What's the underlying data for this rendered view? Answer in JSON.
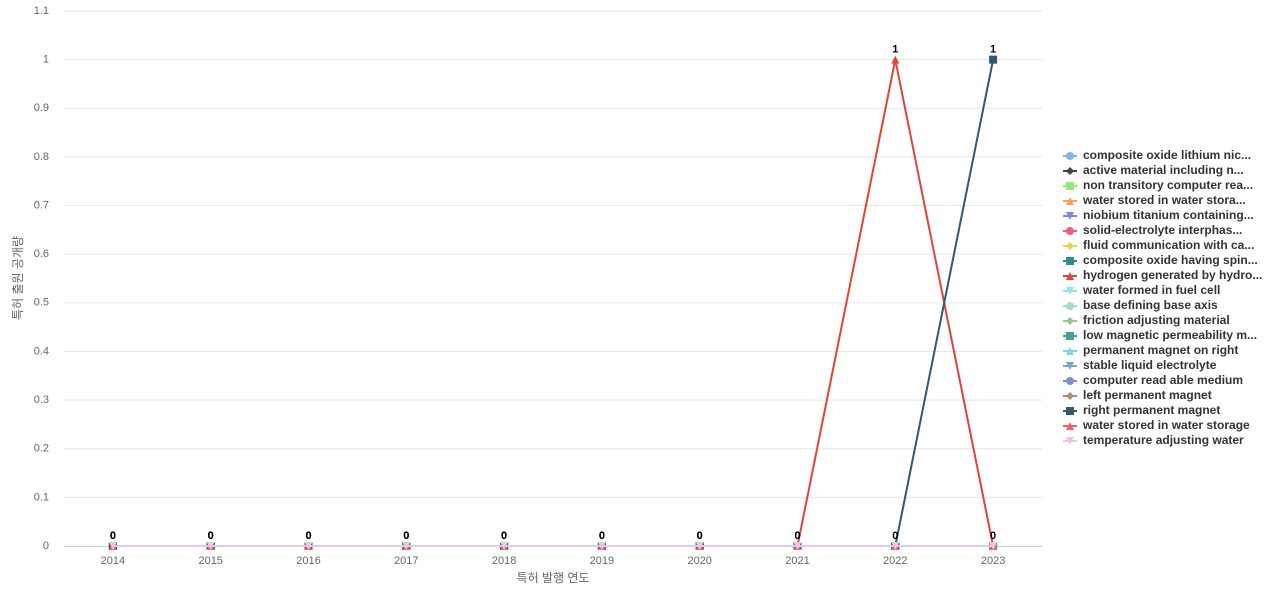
{
  "chart_data": {
    "type": "line",
    "x_label": "특허 발행 연도",
    "y_label": "특허 출원 공개량",
    "categories": [
      "2014",
      "2015",
      "2016",
      "2017",
      "2018",
      "2019",
      "2020",
      "2021",
      "2022",
      "2023"
    ],
    "ylim": [
      0,
      1.1
    ],
    "yticks": [
      0,
      0.1,
      0.2,
      0.3,
      0.4,
      0.5,
      0.6,
      0.7,
      0.8,
      0.9,
      1,
      1.1
    ],
    "grid": true,
    "legend": "right",
    "series": [
      {
        "name": "composite oxide lithium nic...",
        "color": "#7cb5ec",
        "marker": "circle",
        "values": [
          0,
          0,
          0,
          0,
          0,
          0,
          0,
          0,
          0,
          0
        ]
      },
      {
        "name": "active material including n...",
        "color": "#434348",
        "marker": "diamond",
        "values": [
          0,
          0,
          0,
          0,
          0,
          0,
          0,
          0,
          0,
          0
        ]
      },
      {
        "name": "non transitory computer rea...",
        "color": "#90ed7d",
        "marker": "square",
        "values": [
          0,
          0,
          0,
          0,
          0,
          0,
          0,
          0,
          0,
          0
        ]
      },
      {
        "name": "water stored in water stora...",
        "color": "#f7a35c",
        "marker": "triangle",
        "values": [
          0,
          0,
          0,
          0,
          0,
          0,
          0,
          0,
          0,
          0
        ]
      },
      {
        "name": "niobium titanium containing...",
        "color": "#8085e9",
        "marker": "triangle-down",
        "values": [
          0,
          0,
          0,
          0,
          0,
          0,
          0,
          0,
          0,
          0
        ]
      },
      {
        "name": "solid-electrolyte interphas...",
        "color": "#f15c80",
        "marker": "circle",
        "values": [
          0,
          0,
          0,
          0,
          0,
          0,
          0,
          0,
          0,
          0
        ]
      },
      {
        "name": "fluid communication with ca...",
        "color": "#e4d354",
        "marker": "diamond",
        "values": [
          0,
          0,
          0,
          0,
          0,
          0,
          0,
          0,
          0,
          0
        ]
      },
      {
        "name": "composite oxide having spin...",
        "color": "#2b908f",
        "marker": "square",
        "values": [
          0,
          0,
          0,
          0,
          0,
          0,
          0,
          0,
          0,
          0
        ]
      },
      {
        "name": "hydrogen generated by hydro...",
        "color": "#e0443a",
        "marker": "triangle",
        "labels": true,
        "values": [
          0,
          0,
          0,
          0,
          0,
          0,
          0,
          0,
          1,
          0
        ]
      },
      {
        "name": "water formed in fuel cell",
        "color": "#91e8e1",
        "marker": "triangle-down",
        "values": [
          0,
          0,
          0,
          0,
          0,
          0,
          0,
          0,
          0,
          0
        ]
      },
      {
        "name": "base defining base axis",
        "color": "#a8dcc8",
        "marker": "circle",
        "values": [
          0,
          0,
          0,
          0,
          0,
          0,
          0,
          0,
          0,
          0
        ]
      },
      {
        "name": "friction adjusting material",
        "color": "#9dc38a",
        "marker": "diamond",
        "values": [
          0,
          0,
          0,
          0,
          0,
          0,
          0,
          0,
          0,
          0
        ]
      },
      {
        "name": "low magnetic permeability m...",
        "color": "#45a08c",
        "marker": "square",
        "values": [
          0,
          0,
          0,
          0,
          0,
          0,
          0,
          0,
          0,
          0
        ]
      },
      {
        "name": "permanent magnet on right",
        "color": "#7fd3e6",
        "marker": "triangle",
        "values": [
          0,
          0,
          0,
          0,
          0,
          0,
          0,
          0,
          0,
          0
        ]
      },
      {
        "name": "stable liquid electrolyte",
        "color": "#6fa8dc",
        "marker": "triangle-down",
        "values": [
          0,
          0,
          0,
          0,
          0,
          0,
          0,
          0,
          0,
          0
        ]
      },
      {
        "name": "computer read able medium",
        "color": "#7d8fd1",
        "marker": "circle",
        "values": [
          0,
          0,
          0,
          0,
          0,
          0,
          0,
          0,
          0,
          0
        ]
      },
      {
        "name": "left permanent magnet",
        "color": "#c0876b",
        "marker": "diamond",
        "values": [
          0,
          0,
          0,
          0,
          0,
          0,
          0,
          0,
          0,
          0
        ]
      },
      {
        "name": "right permanent magnet",
        "color": "#34566e",
        "marker": "square",
        "labels": true,
        "values": [
          0,
          0,
          0,
          0,
          0,
          0,
          0,
          0,
          0,
          1
        ]
      },
      {
        "name": "water stored in water storage",
        "color": "#f06060",
        "marker": "triangle",
        "values": [
          0,
          0,
          0,
          0,
          0,
          0,
          0,
          0,
          0,
          0
        ]
      },
      {
        "name": "temperature adjusting water",
        "color": "#e6c8e6",
        "marker": "triangle-down",
        "values": [
          0,
          0,
          0,
          0,
          0,
          0,
          0,
          0,
          0,
          0
        ]
      }
    ]
  }
}
